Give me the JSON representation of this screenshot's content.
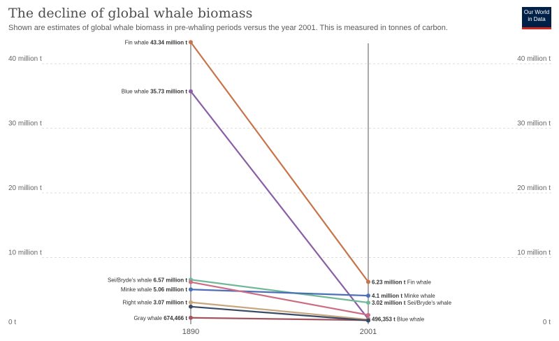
{
  "header": {
    "title": "The decline of global whale biomass",
    "subtitle": "Shown are estimates of global whale biomass in pre-whaling periods versus the year 2001. This is measured in tonnes of carbon.",
    "logo_line1": "Our World",
    "logo_line2": "in Data"
  },
  "colors": {
    "logo_bg": "#002147",
    "logo_accent": "#ce261e"
  },
  "chart_data": {
    "type": "line",
    "subtype": "slope",
    "x": [
      "1890",
      "2001"
    ],
    "y_ticks": [
      "0 t",
      "10 million t",
      "20 million t",
      "30 million t",
      "40 million t"
    ],
    "y_tick_values": [
      0,
      10000000,
      20000000,
      30000000,
      40000000
    ],
    "ylim": [
      0,
      45000000
    ],
    "grid": true,
    "series": [
      {
        "name": "Fin whale",
        "color": "#c8744a",
        "values": [
          43340000,
          6230000
        ],
        "label_start": "43.34 million t",
        "label_end": "6.23 million t",
        "end_labeled": true
      },
      {
        "name": "Blue whale",
        "color": "#8a5fa6",
        "values": [
          35730000,
          496353
        ],
        "label_start": "35.73 million t",
        "label_end": "496,353 t",
        "end_labeled": true
      },
      {
        "name": "Sei/Bryde's whale",
        "color": "#6fb898",
        "values": [
          6570000,
          3020000
        ],
        "label_start": "6.57 million t",
        "label_end": "3.02 million t",
        "end_labeled": true
      },
      {
        "name": "Minke whale",
        "color": "#4c6fb8",
        "values": [
          5060000,
          4100000
        ],
        "label_start": "5.06 million t",
        "label_end": "4.1 million t",
        "end_labeled": true
      },
      {
        "name": "Right whale",
        "color": "#c9a77c",
        "values": [
          3070000,
          400000
        ],
        "label_start": "3.07 million t",
        "label_end": "",
        "end_labeled": false
      },
      {
        "name": "Gray whale",
        "color": "#a2555f",
        "values": [
          674466,
          300000
        ],
        "label_start": "674,466 t",
        "label_end": "",
        "end_labeled": false
      },
      {
        "name": "",
        "color": "#cd6d84",
        "values": [
          6200000,
          1100000
        ],
        "label_start": "",
        "label_end": "",
        "end_labeled": false
      },
      {
        "name": "",
        "color": "#3b4a66",
        "values": [
          2400000,
          250000
        ],
        "label_start": "",
        "label_end": "",
        "end_labeled": false
      }
    ]
  }
}
